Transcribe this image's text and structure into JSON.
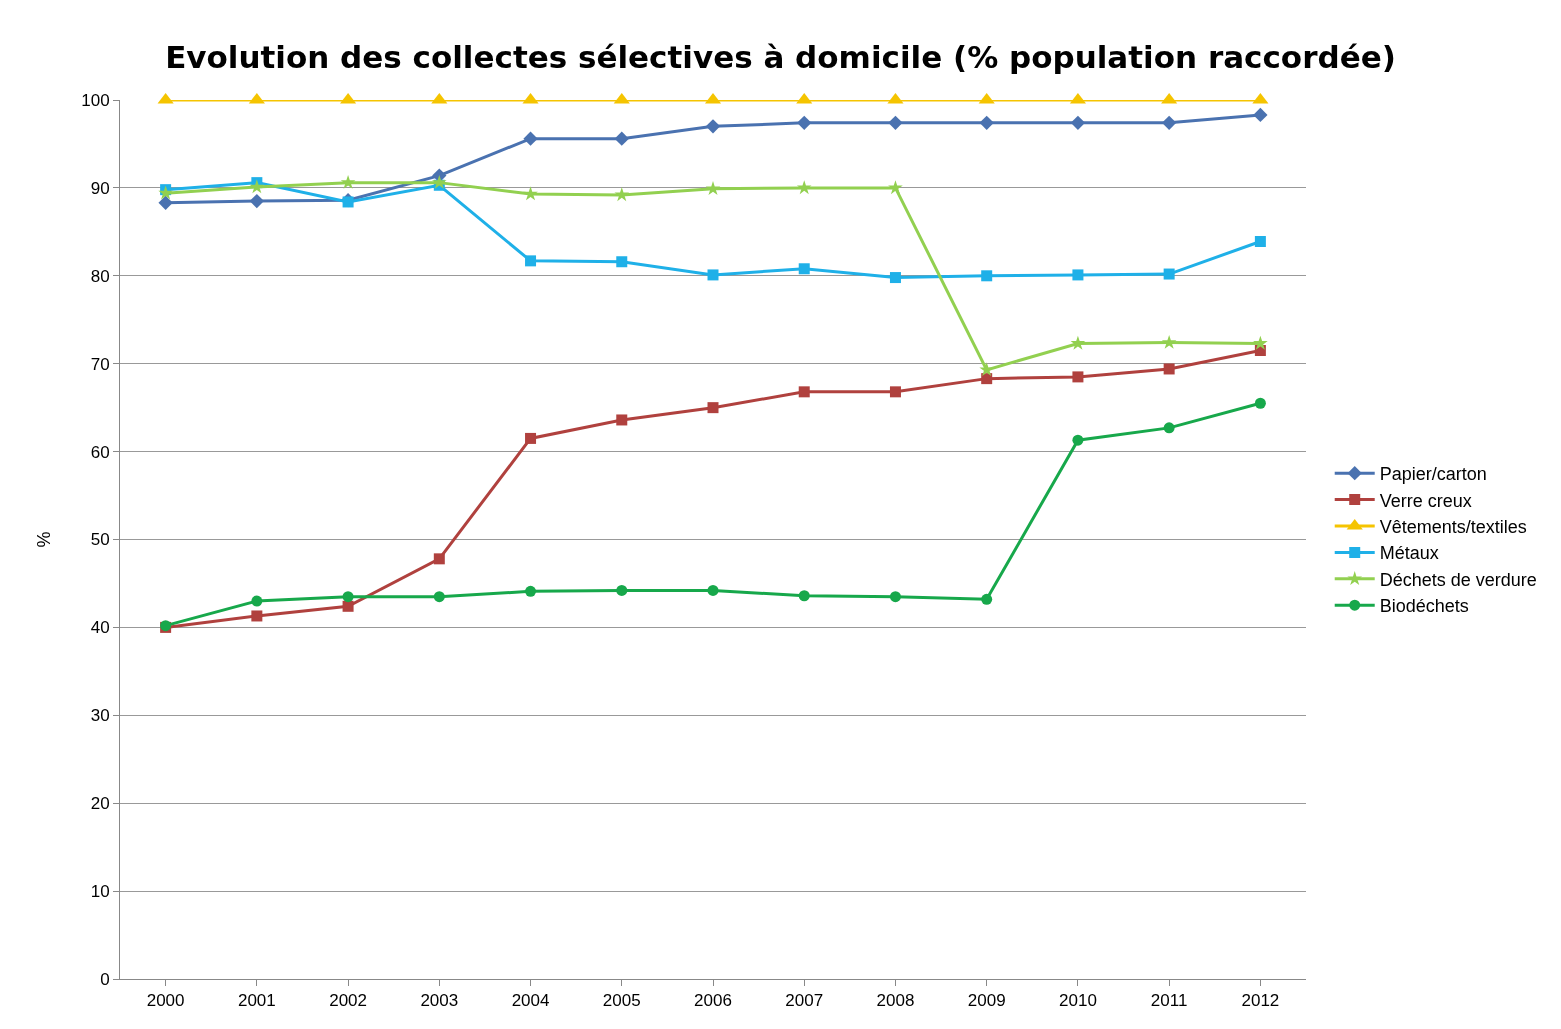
{
  "chart_data": {
    "type": "line",
    "title": "Evolution des collectes sélectives à domicile (% population raccordée)",
    "ylabel": "%",
    "categories": [
      "2000",
      "2001",
      "2002",
      "2003",
      "2004",
      "2005",
      "2006",
      "2007",
      "2008",
      "2009",
      "2010",
      "2011",
      "2012"
    ],
    "ylim": [
      0,
      100
    ],
    "yticks": [
      0,
      10,
      20,
      30,
      40,
      50,
      60,
      70,
      80,
      90,
      100
    ],
    "grid": "y",
    "legend": "right",
    "line_style": "solid",
    "series": [
      {
        "name": "Papier/carton",
        "color": "#4a72b0",
        "marker": "diamond",
        "values": [
          88.3,
          88.5,
          88.6,
          91.4,
          95.6,
          95.6,
          97.0,
          97.4,
          97.4,
          97.4,
          97.4,
          97.4,
          98.3
        ]
      },
      {
        "name": "Verre creux",
        "color": "#b0413e",
        "marker": "square",
        "values": [
          40.0,
          41.3,
          42.4,
          47.8,
          61.5,
          63.6,
          65.0,
          66.8,
          66.8,
          68.3,
          68.5,
          69.4,
          71.5
        ]
      },
      {
        "name": "Vêtements/textiles",
        "color": "#f5c400",
        "marker": "triangle",
        "values": [
          100,
          100,
          100,
          100,
          100,
          100,
          100,
          100,
          100,
          100,
          100,
          100,
          100
        ]
      },
      {
        "name": "Métaux",
        "color": "#1fb0e8",
        "marker": "square",
        "values": [
          89.8,
          90.6,
          88.4,
          90.3,
          81.7,
          81.6,
          80.1,
          80.8,
          79.8,
          80.0,
          80.1,
          80.2,
          83.9
        ]
      },
      {
        "name": "Déchets de verdure",
        "color": "#92d050",
        "marker": "star",
        "values": [
          89.4,
          90.1,
          90.6,
          90.6,
          89.3,
          89.2,
          89.9,
          90.0,
          90.0,
          69.3,
          72.3,
          72.4,
          72.3
        ]
      },
      {
        "name": "Biodéchets",
        "color": "#17a84b",
        "marker": "circle",
        "values": [
          40.2,
          43.0,
          43.5,
          43.5,
          44.1,
          44.2,
          44.2,
          43.6,
          43.5,
          43.2,
          61.3,
          62.7,
          65.5
        ]
      }
    ]
  }
}
